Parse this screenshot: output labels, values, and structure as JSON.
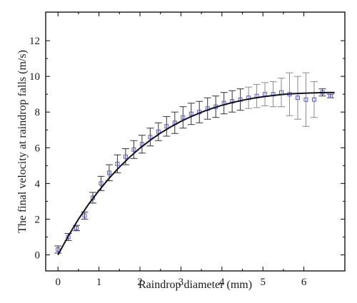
{
  "chart_data": {
    "type": "scatter",
    "title": "",
    "xlabel": "Raindrop diameter (mm)",
    "ylabel": "The final velocity at raindrop falls (m/s)",
    "xlim": [
      -0.3,
      7.0
    ],
    "ylim": [
      -0.9,
      13.6
    ],
    "x_ticks": [
      "0",
      "1",
      "2",
      "3",
      "4",
      "5",
      "6"
    ],
    "y_ticks": [
      "0",
      "2",
      "4",
      "6",
      "8",
      "10",
      "12"
    ],
    "grid": false,
    "legend": "none",
    "colors": {
      "markers": "#5a5ad0",
      "fit_curve": "#111122",
      "error_bars": "#333333",
      "axes": "#000000"
    },
    "series": [
      {
        "kind": "markers_with_error_bars",
        "x": [
          0.0,
          0.25,
          0.45,
          0.65,
          0.85,
          1.05,
          1.25,
          1.45,
          1.65,
          1.85,
          2.05,
          2.25,
          2.45,
          2.65,
          2.85,
          3.05,
          3.25,
          3.45,
          3.65,
          3.85,
          4.05,
          4.25,
          4.45,
          4.65,
          4.85,
          5.05,
          5.25,
          5.45,
          5.65,
          5.85,
          6.05,
          6.25,
          6.45,
          6.65
        ],
        "y": [
          0.3,
          1.0,
          1.5,
          2.2,
          3.2,
          4.0,
          4.6,
          5.1,
          5.5,
          5.9,
          6.2,
          6.6,
          6.9,
          7.2,
          7.4,
          7.7,
          7.9,
          8.0,
          8.2,
          8.3,
          8.5,
          8.6,
          8.7,
          8.8,
          8.9,
          9.0,
          9.0,
          9.1,
          9.0,
          8.8,
          8.7,
          8.7,
          9.1,
          8.9
        ],
        "err": [
          0.2,
          0.2,
          0.15,
          0.2,
          0.3,
          0.4,
          0.45,
          0.5,
          0.45,
          0.5,
          0.5,
          0.5,
          0.5,
          0.55,
          0.6,
          0.6,
          0.6,
          0.6,
          0.6,
          0.6,
          0.6,
          0.6,
          0.6,
          0.6,
          0.65,
          0.65,
          0.7,
          0.8,
          1.2,
          1.2,
          1.5,
          1.0,
          0.2,
          0.1
        ]
      },
      {
        "kind": "fit_line",
        "x": [
          0.0,
          0.25,
          0.5,
          0.75,
          1.0,
          1.25,
          1.5,
          1.75,
          2.0,
          2.25,
          2.5,
          2.75,
          3.0,
          3.25,
          3.5,
          3.75,
          4.0,
          4.25,
          4.5,
          4.75,
          5.0,
          5.25,
          5.5,
          5.75,
          6.0,
          6.25,
          6.5,
          6.75
        ],
        "y": [
          0.0,
          1.05,
          2.0,
          2.85,
          3.6,
          4.3,
          4.92,
          5.48,
          5.98,
          6.42,
          6.82,
          7.17,
          7.48,
          7.75,
          7.99,
          8.2,
          8.38,
          8.53,
          8.66,
          8.77,
          8.86,
          8.93,
          8.99,
          9.03,
          9.06,
          9.08,
          9.09,
          9.1
        ]
      }
    ]
  }
}
